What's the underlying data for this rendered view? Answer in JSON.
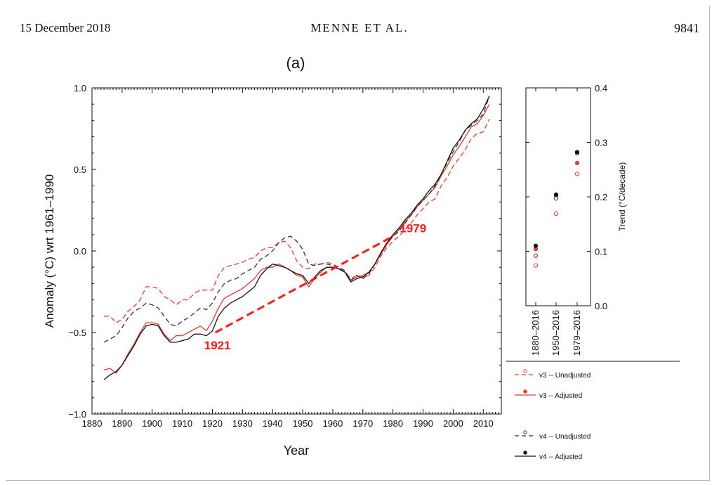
{
  "header": {
    "date": "15 December 2018",
    "authors": "MENNE ET AL.",
    "page": "9841"
  },
  "chart_data": [
    {
      "type": "line",
      "panel_label": "(a)",
      "xlabel": "Year",
      "ylabel": "Anomaly (°C) wrt 1961–1990",
      "xlim": [
        1880,
        2016
      ],
      "ylim": [
        -1.0,
        1.0
      ],
      "x_ticks": [
        "1880",
        "1890",
        "1900",
        "1910",
        "1920",
        "1930",
        "1940",
        "1950",
        "1960",
        "1970",
        "1980",
        "1990",
        "2000",
        "2010"
      ],
      "y_ticks": [
        "1.0",
        "0.5",
        "0.0",
        "−0.5",
        "−1.0"
      ],
      "series": [
        {
          "name": "v3 -- Unadjusted",
          "color": "#e8392f",
          "dash": true,
          "x": [
            1884,
            1886,
            1888,
            1890,
            1892,
            1894,
            1896,
            1898,
            1900,
            1902,
            1904,
            1906,
            1908,
            1910,
            1912,
            1914,
            1916,
            1918,
            1920,
            1922,
            1924,
            1926,
            1928,
            1930,
            1932,
            1934,
            1936,
            1938,
            1940,
            1942,
            1944,
            1946,
            1948,
            1950,
            1952,
            1954,
            1956,
            1958,
            1960,
            1962,
            1964,
            1966,
            1968,
            1970,
            1972,
            1974,
            1976,
            1978,
            1980,
            1982,
            1984,
            1986,
            1988,
            1990,
            1992,
            1994,
            1996,
            1998,
            2000,
            2002,
            2004,
            2006,
            2008,
            2010,
            2012
          ],
          "y": [
            -0.4,
            -0.4,
            -0.44,
            -0.42,
            -0.37,
            -0.34,
            -0.3,
            -0.22,
            -0.22,
            -0.23,
            -0.28,
            -0.3,
            -0.33,
            -0.3,
            -0.3,
            -0.26,
            -0.24,
            -0.24,
            -0.24,
            -0.15,
            -0.1,
            -0.09,
            -0.08,
            -0.07,
            -0.05,
            -0.04,
            0.0,
            0.02,
            0.02,
            0.05,
            0.06,
            0.02,
            -0.06,
            -0.1,
            -0.11,
            -0.08,
            -0.08,
            -0.07,
            -0.08,
            -0.1,
            -0.13,
            -0.17,
            -0.15,
            -0.16,
            -0.15,
            -0.1,
            -0.03,
            0.02,
            0.06,
            0.09,
            0.13,
            0.17,
            0.22,
            0.26,
            0.3,
            0.32,
            0.4,
            0.45,
            0.52,
            0.57,
            0.62,
            0.69,
            0.72,
            0.73,
            0.81
          ]
        },
        {
          "name": "v3 -- Adjusted",
          "color": "#e8392f",
          "dash": false,
          "x": [
            1884,
            1886,
            1888,
            1890,
            1892,
            1894,
            1896,
            1898,
            1900,
            1902,
            1904,
            1906,
            1908,
            1910,
            1912,
            1914,
            1916,
            1918,
            1920,
            1922,
            1924,
            1926,
            1928,
            1930,
            1932,
            1934,
            1936,
            1938,
            1940,
            1942,
            1944,
            1946,
            1948,
            1950,
            1952,
            1954,
            1956,
            1958,
            1960,
            1962,
            1964,
            1966,
            1968,
            1970,
            1972,
            1974,
            1976,
            1978,
            1980,
            1982,
            1984,
            1986,
            1988,
            1990,
            1992,
            1994,
            1996,
            1998,
            2000,
            2002,
            2004,
            2006,
            2008,
            2010,
            2012
          ],
          "y": [
            -0.73,
            -0.72,
            -0.75,
            -0.7,
            -0.63,
            -0.57,
            -0.5,
            -0.44,
            -0.44,
            -0.45,
            -0.51,
            -0.55,
            -0.52,
            -0.52,
            -0.5,
            -0.48,
            -0.46,
            -0.49,
            -0.43,
            -0.35,
            -0.29,
            -0.27,
            -0.25,
            -0.23,
            -0.2,
            -0.17,
            -0.12,
            -0.1,
            -0.1,
            -0.08,
            -0.1,
            -0.12,
            -0.15,
            -0.16,
            -0.22,
            -0.17,
            -0.13,
            -0.1,
            -0.1,
            -0.11,
            -0.13,
            -0.18,
            -0.16,
            -0.15,
            -0.13,
            -0.08,
            -0.02,
            0.04,
            0.09,
            0.13,
            0.18,
            0.22,
            0.27,
            0.31,
            0.35,
            0.39,
            0.46,
            0.52,
            0.59,
            0.64,
            0.7,
            0.76,
            0.78,
            0.83,
            0.9
          ]
        },
        {
          "name": "v4 -- Unadjusted",
          "color": "#333333",
          "dash": true,
          "x": [
            1884,
            1886,
            1888,
            1890,
            1892,
            1894,
            1896,
            1898,
            1900,
            1902,
            1904,
            1906,
            1908,
            1910,
            1912,
            1914,
            1916,
            1918,
            1920,
            1922,
            1924,
            1926,
            1928,
            1930,
            1932,
            1934,
            1936,
            1938,
            1940,
            1942,
            1944,
            1946,
            1948,
            1950,
            1952,
            1954,
            1956,
            1958,
            1960,
            1962,
            1964,
            1966,
            1968,
            1970,
            1972,
            1974,
            1976,
            1978,
            1980,
            1982,
            1984,
            1986,
            1988,
            1990,
            1992,
            1994,
            1996,
            1998,
            2000,
            2002,
            2004,
            2006,
            2008,
            2010,
            2012
          ],
          "y": [
            -0.56,
            -0.54,
            -0.52,
            -0.47,
            -0.41,
            -0.37,
            -0.35,
            -0.32,
            -0.33,
            -0.35,
            -0.4,
            -0.45,
            -0.46,
            -0.43,
            -0.41,
            -0.38,
            -0.35,
            -0.36,
            -0.32,
            -0.25,
            -0.2,
            -0.18,
            -0.17,
            -0.14,
            -0.12,
            -0.1,
            -0.05,
            -0.03,
            0.0,
            0.05,
            0.08,
            0.09,
            0.06,
            0.01,
            -0.08,
            -0.09,
            -0.08,
            -0.08,
            -0.09,
            -0.1,
            -0.12,
            -0.18,
            -0.15,
            -0.17,
            -0.14,
            -0.08,
            -0.01,
            0.05,
            0.09,
            0.12,
            0.17,
            0.22,
            0.27,
            0.31,
            0.35,
            0.4,
            0.47,
            0.54,
            0.61,
            0.67,
            0.74,
            0.77,
            0.8,
            0.84,
            0.95
          ]
        },
        {
          "name": "v4 -- Adjusted",
          "color": "#111111",
          "dash": false,
          "x": [
            1884,
            1886,
            1888,
            1890,
            1892,
            1894,
            1896,
            1898,
            1900,
            1902,
            1904,
            1906,
            1908,
            1910,
            1912,
            1914,
            1916,
            1918,
            1920,
            1922,
            1924,
            1926,
            1928,
            1930,
            1932,
            1934,
            1936,
            1938,
            1940,
            1942,
            1944,
            1946,
            1948,
            1950,
            1952,
            1954,
            1956,
            1958,
            1960,
            1962,
            1964,
            1966,
            1968,
            1970,
            1972,
            1974,
            1976,
            1978,
            1980,
            1982,
            1984,
            1986,
            1988,
            1990,
            1992,
            1994,
            1996,
            1998,
            2000,
            2002,
            2004,
            2006,
            2008,
            2010,
            2012
          ],
          "y": [
            -0.79,
            -0.76,
            -0.74,
            -0.7,
            -0.64,
            -0.58,
            -0.51,
            -0.46,
            -0.45,
            -0.46,
            -0.52,
            -0.56,
            -0.56,
            -0.55,
            -0.54,
            -0.51,
            -0.51,
            -0.52,
            -0.49,
            -0.4,
            -0.35,
            -0.32,
            -0.3,
            -0.28,
            -0.25,
            -0.22,
            -0.15,
            -0.11,
            -0.08,
            -0.09,
            -0.1,
            -0.12,
            -0.14,
            -0.15,
            -0.2,
            -0.16,
            -0.12,
            -0.1,
            -0.1,
            -0.11,
            -0.13,
            -0.19,
            -0.17,
            -0.16,
            -0.13,
            -0.08,
            -0.01,
            0.05,
            0.1,
            0.14,
            0.19,
            0.23,
            0.28,
            0.32,
            0.37,
            0.41,
            0.47,
            0.55,
            0.63,
            0.68,
            0.74,
            0.78,
            0.81,
            0.87,
            0.95
          ]
        }
      ],
      "annotations": [
        {
          "text": "1921",
          "x": 1921,
          "y": -0.5,
          "color": "#ff1a1a"
        },
        {
          "text": "1979",
          "x": 1979,
          "y": 0.08,
          "color": "#ff1a1a"
        }
      ],
      "trend_line": {
        "from": [
          1921,
          -0.5
        ],
        "to": [
          1979,
          0.08
        ],
        "color": "#ff1a1a",
        "dash": true
      }
    },
    {
      "type": "scatter",
      "ylabel": "Trend (°C/decade)",
      "ylim": [
        0.0,
        0.4
      ],
      "y_ticks": [
        "0.4",
        "0.3",
        "0.2",
        "0.1",
        "0.0"
      ],
      "categories": [
        "1880–2016",
        "1950–2016",
        "1979–2016"
      ],
      "series": [
        {
          "name": "v3 -- Unadjusted",
          "marker": "open-circle",
          "color": "#e8392f",
          "values": [
            0.074,
            0.169,
            0.242
          ]
        },
        {
          "name": "v3 -- Adjusted",
          "marker": "filled-circle",
          "color": "#e8392f",
          "values": [
            0.104,
            0.202,
            0.262
          ]
        },
        {
          "name": "v4 -- Unadjusted",
          "marker": "open-circle",
          "color": "#333333",
          "values": [
            0.092,
            0.197,
            0.28
          ]
        },
        {
          "name": "v4 -- Adjusted",
          "marker": "filled-circle",
          "color": "#111111",
          "values": [
            0.11,
            0.204,
            0.282
          ]
        }
      ]
    }
  ],
  "legend": [
    {
      "label": "v3 -- Unadjusted",
      "color": "#e8392f",
      "dash": true,
      "marker": "open"
    },
    {
      "label": "v3 -- Adjusted",
      "color": "#e8392f",
      "dash": false,
      "marker": "filled"
    },
    {
      "label": "v4 -- Unadjusted",
      "color": "#333333",
      "dash": true,
      "marker": "open"
    },
    {
      "label": "v4 -- Adjusted",
      "color": "#111111",
      "dash": false,
      "marker": "filled"
    }
  ]
}
